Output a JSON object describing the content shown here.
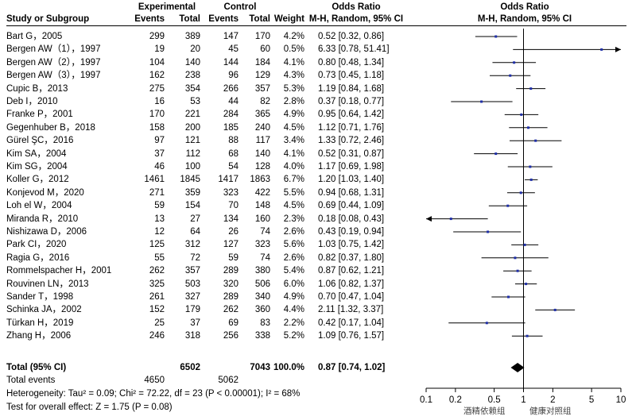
{
  "headers": {
    "experimental": "Experimental",
    "control": "Control",
    "odds_ratio_table": "Odds Ratio",
    "odds_ratio_plot": "Odds Ratio",
    "study": "Study or Subgroup",
    "events_e": "Events",
    "total_e": "Total",
    "events_c": "Events",
    "total_c": "Total",
    "weight": "Weight",
    "method_table": "M-H, Random, 95% CI",
    "method_plot": "M-H, Random, 95% CI"
  },
  "studies": [
    {
      "name": "Bart G，2005",
      "ee": "299",
      "te": "389",
      "ec": "147",
      "tc": "170",
      "w": "4.2%",
      "ci": "0.52 [0.32, 0.86]"
    },
    {
      "name": "Bergen AW（1），1997",
      "ee": "19",
      "te": "20",
      "ec": "45",
      "tc": "60",
      "w": "0.5%",
      "ci": "6.33 [0.78, 51.41]"
    },
    {
      "name": "Bergen AW（2），1997",
      "ee": "104",
      "te": "140",
      "ec": "144",
      "tc": "184",
      "w": "4.1%",
      "ci": "0.80 [0.48, 1.34]"
    },
    {
      "name": "Bergen AW（3），1997",
      "ee": "162",
      "te": "238",
      "ec": "96",
      "tc": "129",
      "w": "4.3%",
      "ci": "0.73 [0.45, 1.18]"
    },
    {
      "name": "Cupic B，2013",
      "ee": "275",
      "te": "354",
      "ec": "266",
      "tc": "357",
      "w": "5.3%",
      "ci": "1.19 [0.84, 1.68]"
    },
    {
      "name": "Deb I，2010",
      "ee": "16",
      "te": "53",
      "ec": "44",
      "tc": "82",
      "w": "2.8%",
      "ci": "0.37 [0.18, 0.77]"
    },
    {
      "name": "Franke P，2001",
      "ee": "170",
      "te": "221",
      "ec": "284",
      "tc": "365",
      "w": "4.9%",
      "ci": "0.95 [0.64, 1.42]"
    },
    {
      "name": "Gegenhuber B，2018",
      "ee": "158",
      "te": "200",
      "ec": "185",
      "tc": "240",
      "w": "4.5%",
      "ci": "1.12 [0.71, 1.76]"
    },
    {
      "name": "Gürel ŞC，2016",
      "ee": "97",
      "te": "121",
      "ec": "88",
      "tc": "117",
      "w": "3.4%",
      "ci": "1.33 [0.72, 2.46]"
    },
    {
      "name": "Kim SA，2004",
      "ee": "37",
      "te": "112",
      "ec": "68",
      "tc": "140",
      "w": "4.1%",
      "ci": "0.52 [0.31, 0.87]"
    },
    {
      "name": "Kim SG，2004",
      "ee": "46",
      "te": "100",
      "ec": "54",
      "tc": "128",
      "w": "4.0%",
      "ci": "1.17 [0.69, 1.98]"
    },
    {
      "name": "Koller G，2012",
      "ee": "1461",
      "te": "1845",
      "ec": "1417",
      "tc": "1863",
      "w": "6.7%",
      "ci": "1.20 [1.03, 1.40]"
    },
    {
      "name": "Konjevod M，2020",
      "ee": "271",
      "te": "359",
      "ec": "323",
      "tc": "422",
      "w": "5.5%",
      "ci": "0.94 [0.68, 1.31]"
    },
    {
      "name": "Loh el W，2004",
      "ee": "59",
      "te": "154",
      "ec": "70",
      "tc": "148",
      "w": "4.5%",
      "ci": "0.69 [0.44, 1.09]"
    },
    {
      "name": "Miranda R，2010",
      "ee": "13",
      "te": "27",
      "ec": "134",
      "tc": "160",
      "w": "2.3%",
      "ci": "0.18 [0.08, 0.43]"
    },
    {
      "name": "Nishizawa D，2006",
      "ee": "12",
      "te": "64",
      "ec": "26",
      "tc": "74",
      "w": "2.6%",
      "ci": "0.43 [0.19, 0.94]"
    },
    {
      "name": "Park CI，2020",
      "ee": "125",
      "te": "312",
      "ec": "127",
      "tc": "323",
      "w": "5.6%",
      "ci": "1.03 [0.75, 1.42]"
    },
    {
      "name": "Ragia G，2016",
      "ee": "55",
      "te": "72",
      "ec": "59",
      "tc": "74",
      "w": "2.6%",
      "ci": "0.82 [0.37, 1.80]"
    },
    {
      "name": "Rommelspacher H，2001",
      "ee": "262",
      "te": "357",
      "ec": "289",
      "tc": "380",
      "w": "5.4%",
      "ci": "0.87 [0.62, 1.21]"
    },
    {
      "name": "Rouvinen LN，2013",
      "ee": "325",
      "te": "503",
      "ec": "320",
      "tc": "506",
      "w": "6.0%",
      "ci": "1.06 [0.82, 1.37]"
    },
    {
      "name": "Sander T，1998",
      "ee": "261",
      "te": "327",
      "ec": "289",
      "tc": "340",
      "w": "4.9%",
      "ci": "0.70 [0.47, 1.04]"
    },
    {
      "name": "Schinka JA，2002",
      "ee": "152",
      "te": "179",
      "ec": "262",
      "tc": "360",
      "w": "4.4%",
      "ci": "2.11 [1.32, 3.37]"
    },
    {
      "name": "Türkan H，2019",
      "ee": "25",
      "te": "37",
      "ec": "69",
      "tc": "83",
      "w": "2.2%",
      "ci": "0.42 [0.17, 1.04]"
    },
    {
      "name": "Zhang H，2006",
      "ee": "246",
      "te": "318",
      "ec": "256",
      "tc": "338",
      "w": "5.2%",
      "ci": "1.09 [0.76, 1.57]"
    }
  ],
  "total": {
    "label": "Total (95% CI)",
    "te": "6502",
    "tc": "7043",
    "w": "100.0%",
    "ci": "0.87 [0.74, 1.02]"
  },
  "total_events": {
    "label": "Total events",
    "ee": "4650",
    "ec": "5062"
  },
  "heterogeneity": "Heterogeneity: Tau² = 0.09; Chi² = 72.22, df = 23 (P < 0.00001); I² = 68%",
  "overall_effect": "Test for overall effect: Z = 1.75 (P = 0.08)",
  "favours_left": "酒精依赖组",
  "favours_right": "健康对照组",
  "chart_data": {
    "type": "forest",
    "scale": "log",
    "xlim": [
      0.1,
      10
    ],
    "ticks": [
      "0.1",
      "0.2",
      "0.5",
      "1",
      "2",
      "5",
      "10"
    ],
    "tick_values": [
      0.1,
      0.2,
      0.5,
      1,
      2,
      5,
      10
    ],
    "null_line": 1,
    "studies": [
      {
        "or": 0.52,
        "lo": 0.32,
        "hi": 0.86
      },
      {
        "or": 6.33,
        "lo": 0.78,
        "hi": 51.41
      },
      {
        "or": 0.8,
        "lo": 0.48,
        "hi": 1.34
      },
      {
        "or": 0.73,
        "lo": 0.45,
        "hi": 1.18
      },
      {
        "or": 1.19,
        "lo": 0.84,
        "hi": 1.68
      },
      {
        "or": 0.37,
        "lo": 0.18,
        "hi": 0.77
      },
      {
        "or": 0.95,
        "lo": 0.64,
        "hi": 1.42
      },
      {
        "or": 1.12,
        "lo": 0.71,
        "hi": 1.76
      },
      {
        "or": 1.33,
        "lo": 0.72,
        "hi": 2.46
      },
      {
        "or": 0.52,
        "lo": 0.31,
        "hi": 0.87
      },
      {
        "or": 1.17,
        "lo": 0.69,
        "hi": 1.98
      },
      {
        "or": 1.2,
        "lo": 1.03,
        "hi": 1.4
      },
      {
        "or": 0.94,
        "lo": 0.68,
        "hi": 1.31
      },
      {
        "or": 0.69,
        "lo": 0.44,
        "hi": 1.09
      },
      {
        "or": 0.18,
        "lo": 0.08,
        "hi": 0.43
      },
      {
        "or": 0.43,
        "lo": 0.19,
        "hi": 0.94
      },
      {
        "or": 1.03,
        "lo": 0.75,
        "hi": 1.42
      },
      {
        "or": 0.82,
        "lo": 0.37,
        "hi": 1.8
      },
      {
        "or": 0.87,
        "lo": 0.62,
        "hi": 1.21
      },
      {
        "or": 1.06,
        "lo": 0.82,
        "hi": 1.37
      },
      {
        "or": 0.7,
        "lo": 0.47,
        "hi": 1.04
      },
      {
        "or": 2.11,
        "lo": 1.32,
        "hi": 3.37
      },
      {
        "or": 0.42,
        "lo": 0.17,
        "hi": 1.04
      },
      {
        "or": 1.09,
        "lo": 0.76,
        "hi": 1.57
      }
    ],
    "pooled": {
      "or": 0.87,
      "lo": 0.74,
      "hi": 1.02
    },
    "colors": {
      "marker": "#1f2fa8",
      "line": "#000000"
    }
  }
}
